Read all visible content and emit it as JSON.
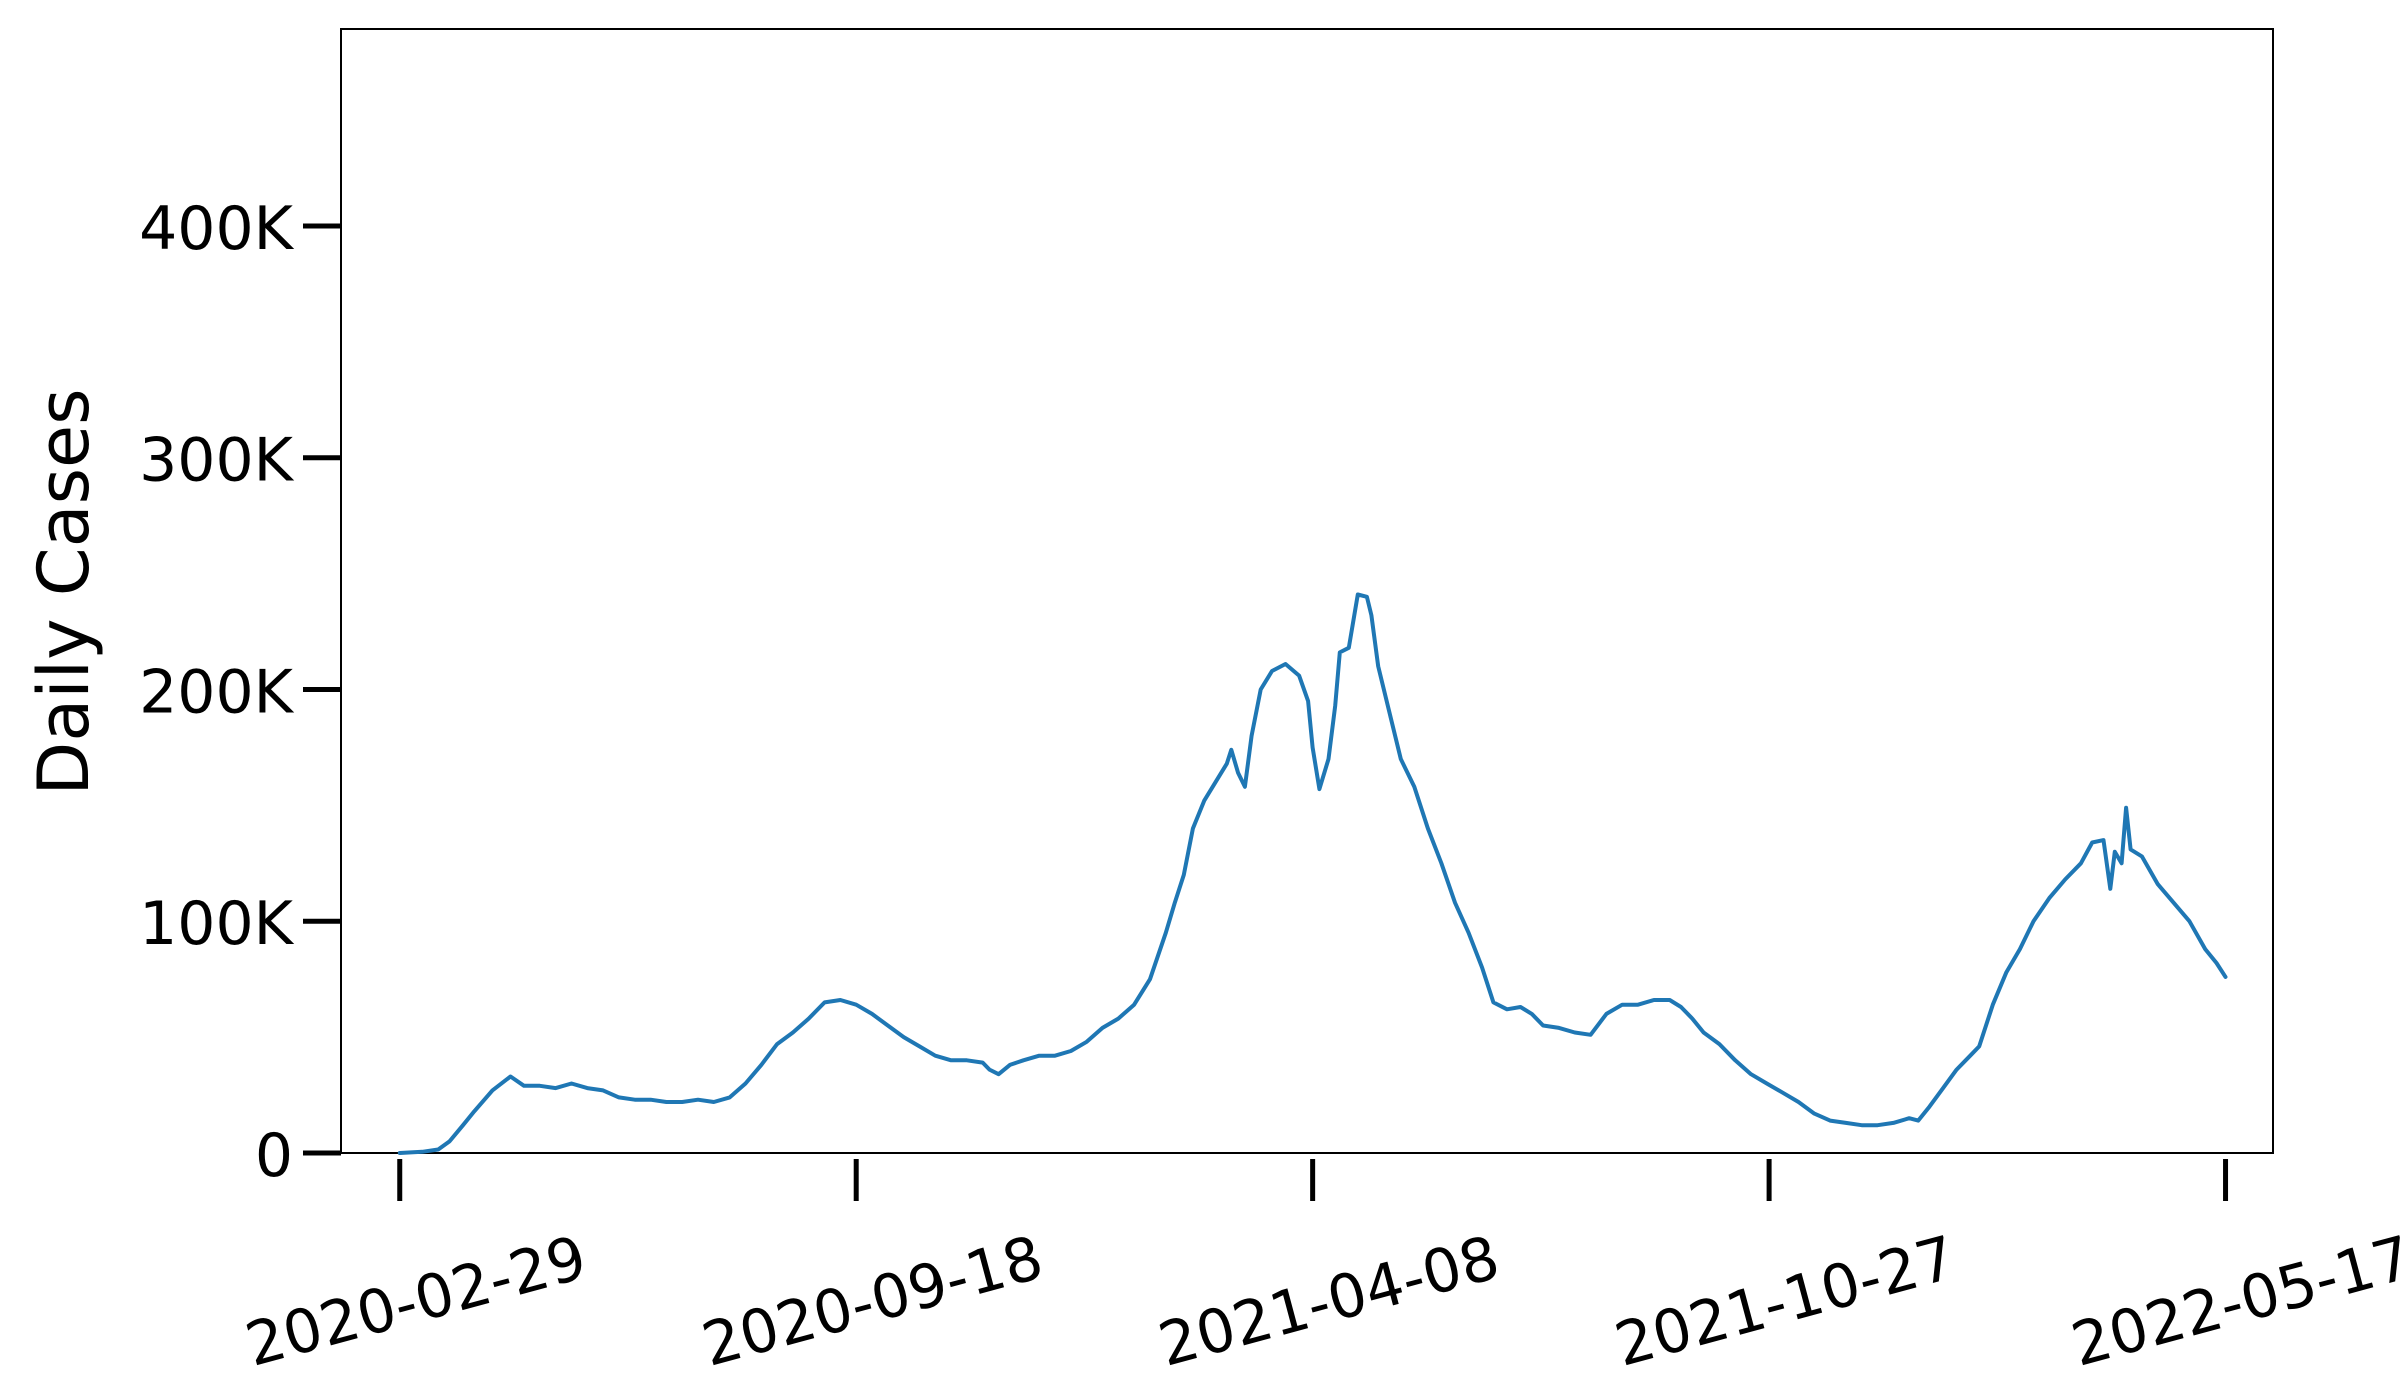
{
  "chart_data": {
    "type": "line",
    "title": "",
    "xlabel": "",
    "ylabel": "Daily Cases",
    "grid": false,
    "legend": "none",
    "line_color": "#1f77b4",
    "xlim": [
      "2020-02-03",
      "2022-06-07"
    ],
    "ylim": [
      0,
      485000
    ],
    "x_ticks": [
      "2020-02-29",
      "2020-09-18",
      "2021-04-08",
      "2021-10-27",
      "2022-05-17"
    ],
    "y_ticks": [
      0,
      100000,
      200000,
      300000,
      400000
    ],
    "y_tick_labels": [
      "0",
      "100K",
      "200K",
      "300K",
      "400K"
    ],
    "series": [
      {
        "points": [
          [
            "2020-02-29",
            0
          ],
          [
            "2020-03-10",
            500
          ],
          [
            "2020-03-17",
            1500
          ],
          [
            "2020-03-22",
            5000
          ],
          [
            "2020-03-28",
            12000
          ],
          [
            "2020-04-02",
            18000
          ],
          [
            "2020-04-10",
            27000
          ],
          [
            "2020-04-18",
            33000
          ],
          [
            "2020-04-24",
            29000
          ],
          [
            "2020-05-01",
            29000
          ],
          [
            "2020-05-08",
            28000
          ],
          [
            "2020-05-15",
            30000
          ],
          [
            "2020-05-22",
            28000
          ],
          [
            "2020-05-29",
            27000
          ],
          [
            "2020-06-05",
            24000
          ],
          [
            "2020-06-12",
            23000
          ],
          [
            "2020-06-19",
            23000
          ],
          [
            "2020-06-26",
            22000
          ],
          [
            "2020-07-03",
            22000
          ],
          [
            "2020-07-10",
            23000
          ],
          [
            "2020-07-17",
            22000
          ],
          [
            "2020-07-24",
            24000
          ],
          [
            "2020-07-31",
            30000
          ],
          [
            "2020-08-07",
            38000
          ],
          [
            "2020-08-14",
            47000
          ],
          [
            "2020-08-21",
            52000
          ],
          [
            "2020-08-28",
            58000
          ],
          [
            "2020-09-04",
            65000
          ],
          [
            "2020-09-11",
            66000
          ],
          [
            "2020-09-18",
            64000
          ],
          [
            "2020-09-25",
            60000
          ],
          [
            "2020-10-02",
            55000
          ],
          [
            "2020-10-09",
            50000
          ],
          [
            "2020-10-16",
            46000
          ],
          [
            "2020-10-23",
            42000
          ],
          [
            "2020-10-30",
            40000
          ],
          [
            "2020-11-06",
            40000
          ],
          [
            "2020-11-13",
            39000
          ],
          [
            "2020-11-16",
            36000
          ],
          [
            "2020-11-20",
            34000
          ],
          [
            "2020-11-25",
            38000
          ],
          [
            "2020-12-01",
            40000
          ],
          [
            "2020-12-08",
            42000
          ],
          [
            "2020-12-15",
            42000
          ],
          [
            "2020-12-22",
            44000
          ],
          [
            "2020-12-29",
            48000
          ],
          [
            "2021-01-05",
            54000
          ],
          [
            "2021-01-12",
            58000
          ],
          [
            "2021-01-19",
            64000
          ],
          [
            "2021-01-26",
            75000
          ],
          [
            "2021-02-02",
            95000
          ],
          [
            "2021-02-06",
            108000
          ],
          [
            "2021-02-10",
            120000
          ],
          [
            "2021-02-14",
            140000
          ],
          [
            "2021-02-19",
            152000
          ],
          [
            "2021-02-24",
            160000
          ],
          [
            "2021-03-01",
            168000
          ],
          [
            "2021-03-03",
            174000
          ],
          [
            "2021-03-06",
            164000
          ],
          [
            "2021-03-09",
            158000
          ],
          [
            "2021-03-12",
            180000
          ],
          [
            "2021-03-16",
            200000
          ],
          [
            "2021-03-21",
            208000
          ],
          [
            "2021-03-27",
            211000
          ],
          [
            "2021-04-02",
            206000
          ],
          [
            "2021-04-06",
            195000
          ],
          [
            "2021-04-08",
            175000
          ],
          [
            "2021-04-11",
            157000
          ],
          [
            "2021-04-15",
            170000
          ],
          [
            "2021-04-18",
            193000
          ],
          [
            "2021-04-20",
            216000
          ],
          [
            "2021-04-24",
            218000
          ],
          [
            "2021-04-28",
            241000
          ],
          [
            "2021-05-02",
            240000
          ],
          [
            "2021-05-04",
            232000
          ],
          [
            "2021-05-07",
            210000
          ],
          [
            "2021-05-12",
            190000
          ],
          [
            "2021-05-17",
            170000
          ],
          [
            "2021-05-23",
            158000
          ],
          [
            "2021-05-29",
            140000
          ],
          [
            "2021-06-04",
            125000
          ],
          [
            "2021-06-10",
            108000
          ],
          [
            "2021-06-16",
            95000
          ],
          [
            "2021-06-22",
            80000
          ],
          [
            "2021-06-27",
            65000
          ],
          [
            "2021-07-03",
            62000
          ],
          [
            "2021-07-09",
            63000
          ],
          [
            "2021-07-14",
            60000
          ],
          [
            "2021-07-19",
            55000
          ],
          [
            "2021-07-26",
            54000
          ],
          [
            "2021-08-02",
            52000
          ],
          [
            "2021-08-09",
            51000
          ],
          [
            "2021-08-16",
            60000
          ],
          [
            "2021-08-23",
            64000
          ],
          [
            "2021-08-30",
            64000
          ],
          [
            "2021-09-06",
            66000
          ],
          [
            "2021-09-13",
            66000
          ],
          [
            "2021-09-18",
            63000
          ],
          [
            "2021-09-23",
            58000
          ],
          [
            "2021-09-28",
            52000
          ],
          [
            "2021-10-05",
            47000
          ],
          [
            "2021-10-12",
            40000
          ],
          [
            "2021-10-19",
            34000
          ],
          [
            "2021-10-26",
            30000
          ],
          [
            "2021-11-02",
            26000
          ],
          [
            "2021-11-09",
            22000
          ],
          [
            "2021-11-16",
            17000
          ],
          [
            "2021-11-23",
            14000
          ],
          [
            "2021-11-30",
            13000
          ],
          [
            "2021-12-07",
            12000
          ],
          [
            "2021-12-14",
            12000
          ],
          [
            "2021-12-21",
            13000
          ],
          [
            "2021-12-28",
            15000
          ],
          [
            "2022-01-01",
            14000
          ],
          [
            "2022-01-06",
            20000
          ],
          [
            "2022-01-12",
            28000
          ],
          [
            "2022-01-18",
            36000
          ],
          [
            "2022-01-24",
            42000
          ],
          [
            "2022-01-28",
            46000
          ],
          [
            "2022-02-03",
            64000
          ],
          [
            "2022-02-09",
            78000
          ],
          [
            "2022-02-15",
            88000
          ],
          [
            "2022-02-21",
            100000
          ],
          [
            "2022-02-28",
            110000
          ],
          [
            "2022-03-07",
            118000
          ],
          [
            "2022-03-14",
            125000
          ],
          [
            "2022-03-19",
            134000
          ],
          [
            "2022-03-24",
            135000
          ],
          [
            "2022-03-27",
            114000
          ],
          [
            "2022-03-29",
            130000
          ],
          [
            "2022-04-01",
            125000
          ],
          [
            "2022-04-03",
            149000
          ],
          [
            "2022-04-05",
            131000
          ],
          [
            "2022-04-10",
            128000
          ],
          [
            "2022-04-17",
            116000
          ],
          [
            "2022-04-24",
            108000
          ],
          [
            "2022-05-01",
            100000
          ],
          [
            "2022-05-08",
            88000
          ],
          [
            "2022-05-13",
            82000
          ],
          [
            "2022-05-17",
            76000
          ]
        ]
      }
    ]
  }
}
